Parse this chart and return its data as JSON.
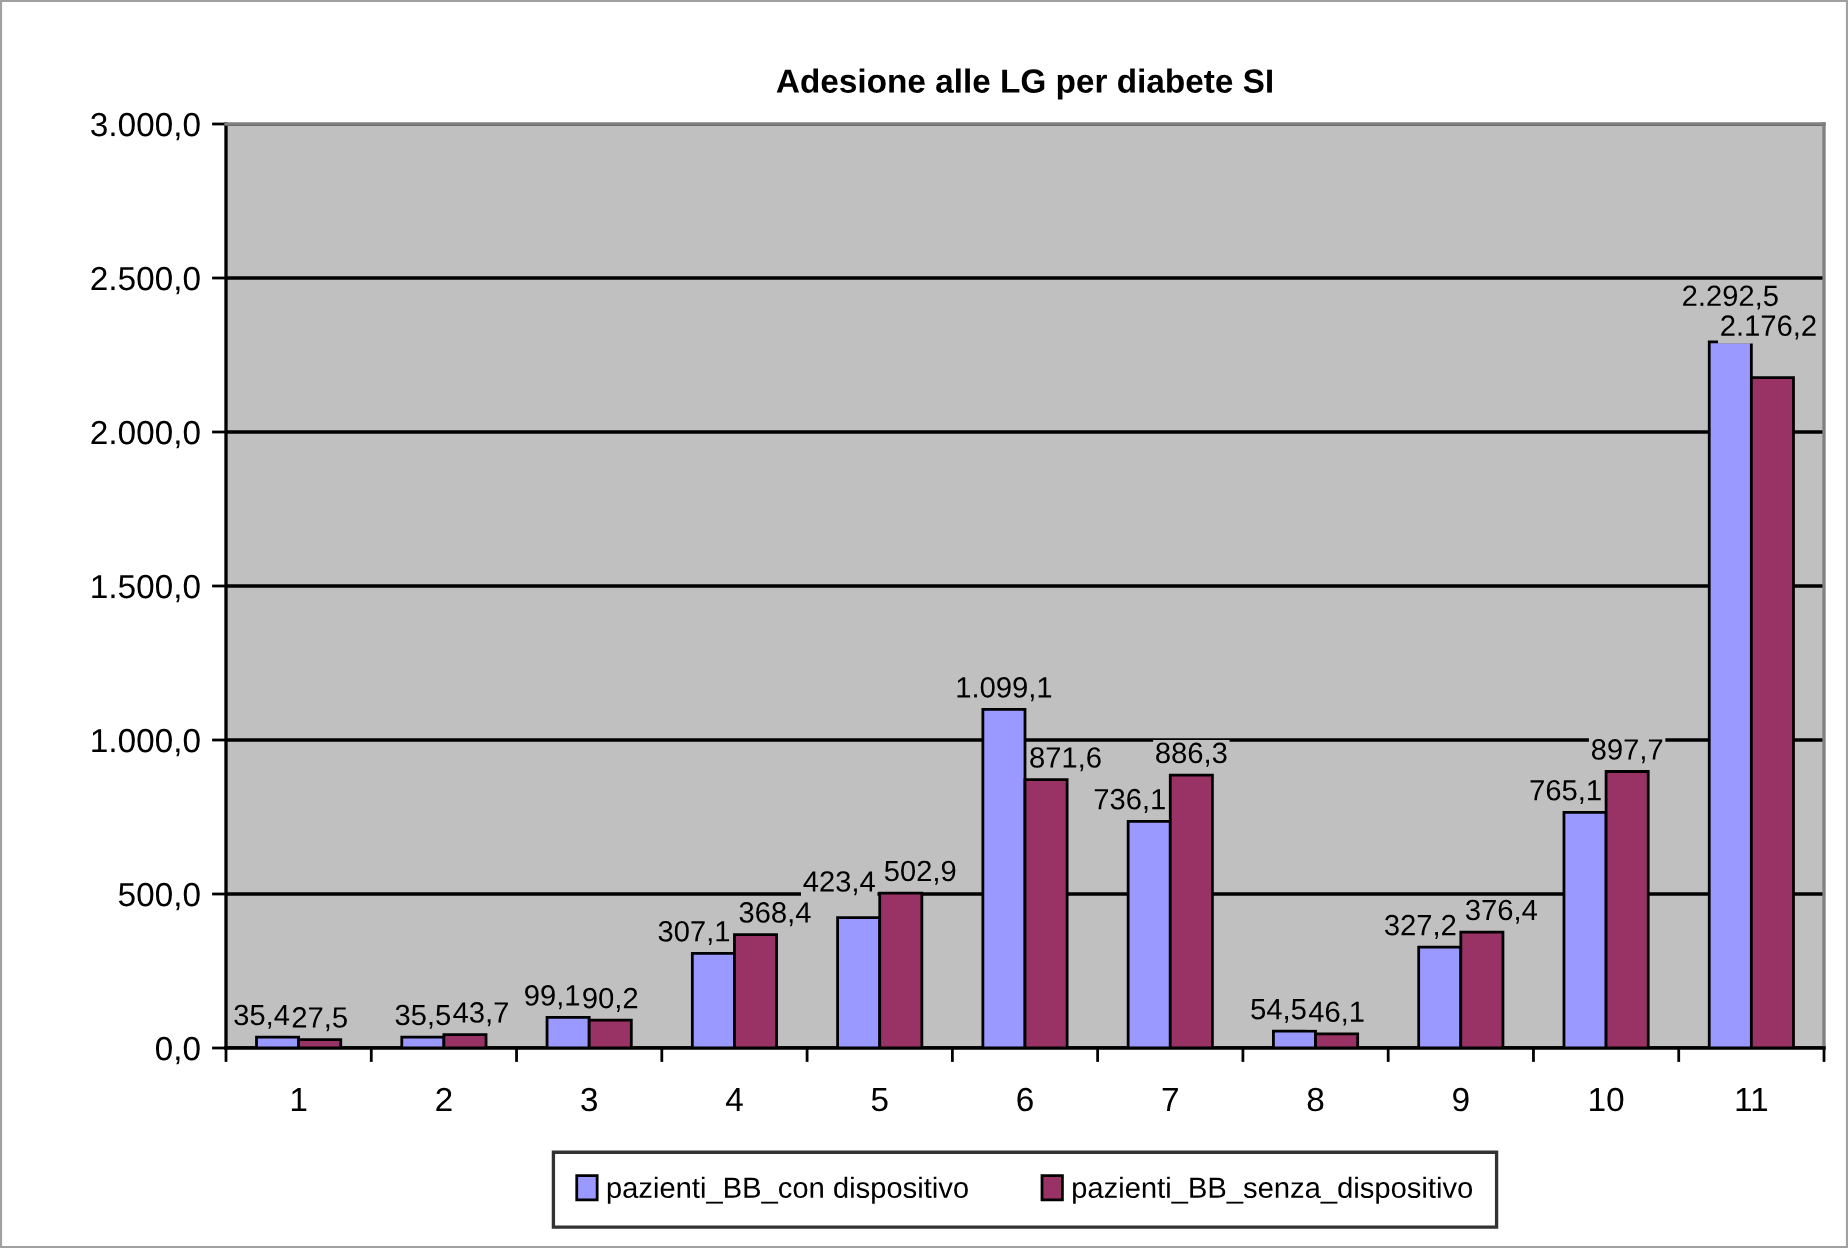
{
  "chart_data": {
    "type": "bar",
    "title": "Adesione alle LG per diabete SI",
    "categories": [
      "1",
      "2",
      "3",
      "4",
      "5",
      "6",
      "7",
      "8",
      "9",
      "10",
      "11"
    ],
    "series": [
      {
        "name": "pazienti_BB_con dispositivo",
        "color": "#9999ff",
        "values": [
          35.4,
          35.5,
          99.1,
          307.1,
          423.4,
          1099.1,
          736.1,
          54.5,
          327.2,
          765.1,
          2292.5
        ],
        "value_labels": [
          "35,4",
          "35,5",
          "99,1",
          "307,1",
          "423,4",
          "1.099,1",
          "736,1",
          "54,5",
          "327,2",
          "765,1",
          "2.292,5"
        ]
      },
      {
        "name": "pazienti_BB_senza_dispositivo",
        "color": "#993366",
        "values": [
          27.5,
          43.7,
          90.2,
          368.4,
          502.9,
          871.6,
          886.3,
          46.1,
          376.4,
          897.7,
          2176.2
        ],
        "value_labels": [
          "27,5",
          "43,7",
          "90,2",
          "368,4",
          "502,9",
          "871,6",
          "886,3",
          "46,1",
          "376,4",
          "897,7",
          "2.176,2"
        ]
      }
    ],
    "ylim": [
      0,
      3000
    ],
    "yticks": [
      {
        "value": 0,
        "label": "0,0"
      },
      {
        "value": 500,
        "label": "500,0"
      },
      {
        "value": 1000,
        "label": "1.000,0"
      },
      {
        "value": 1500,
        "label": "1.500,0"
      },
      {
        "value": 2000,
        "label": "2.000,0"
      },
      {
        "value": 2500,
        "label": "2.500,0"
      },
      {
        "value": 3000,
        "label": "3.000,0"
      }
    ],
    "grid": "y",
    "legend": "bottom"
  }
}
